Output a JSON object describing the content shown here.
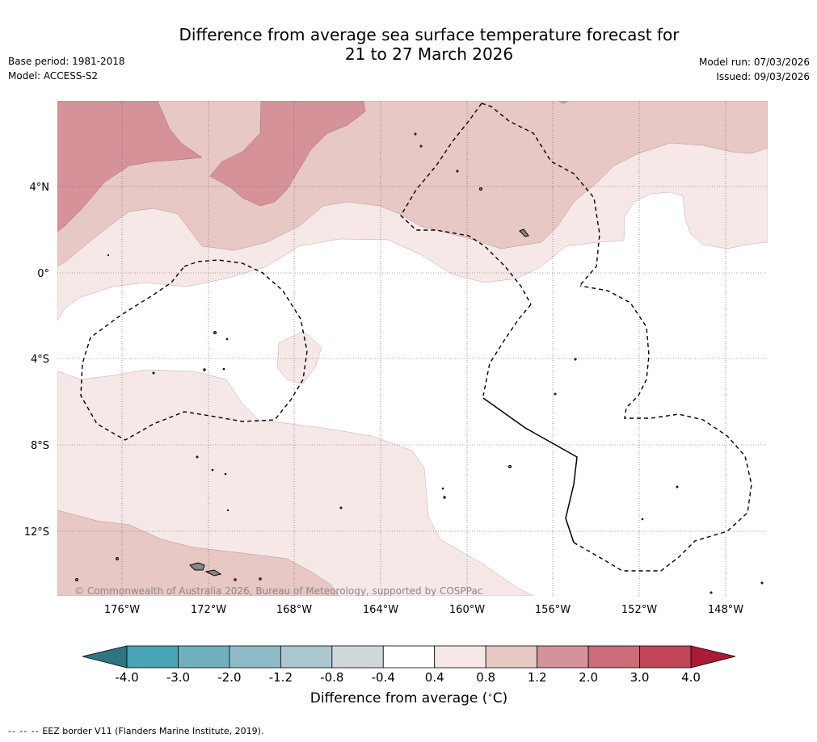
{
  "title": {
    "line1": "Difference from average sea surface temperature forecast for",
    "line2": "21 to 27 March 2026"
  },
  "meta": {
    "base_period": "Base period: 1981-2018",
    "model": "Model: ACCESS-S2",
    "model_run": "Model run: 07/03/2026",
    "issued": "Issued: 09/03/2026"
  },
  "map": {
    "lat_labels": [
      "4°N",
      "0°",
      "4°S",
      "8°S",
      "12°S"
    ],
    "lon_labels": [
      "176°W",
      "172°W",
      "168°W",
      "164°W",
      "160°W",
      "156°W",
      "152°W",
      "148°W"
    ],
    "copyright": "© Commonwealth of Australia 2026, Bureau of Meteorology, supported by COSPPac"
  },
  "colorbar": {
    "ticks": [
      "-4.0",
      "-3.0",
      "-2.0",
      "-1.2",
      "-0.8",
      "-0.4",
      "0.4",
      "0.8",
      "1.2",
      "2.0",
      "3.0",
      "4.0"
    ],
    "colors": [
      "#4aa4b4",
      "#6fb0be",
      "#8fbbc6",
      "#abc8ce",
      "#d0d7d9",
      "#ffffff",
      "#f5e8e7",
      "#e8c8c4",
      "#d69299",
      "#cb6c79",
      "#c04558"
    ],
    "low_extend_color": "#2e7580",
    "high_extend_color": "#a91b38",
    "label": "Difference from average (",
    "label_degree": "∘",
    "label_unit": "C)"
  },
  "footnote": {
    "dashes": "--  --  --",
    "text": "EEZ border V11 (Flanders Marine Institute, 2019)."
  }
}
